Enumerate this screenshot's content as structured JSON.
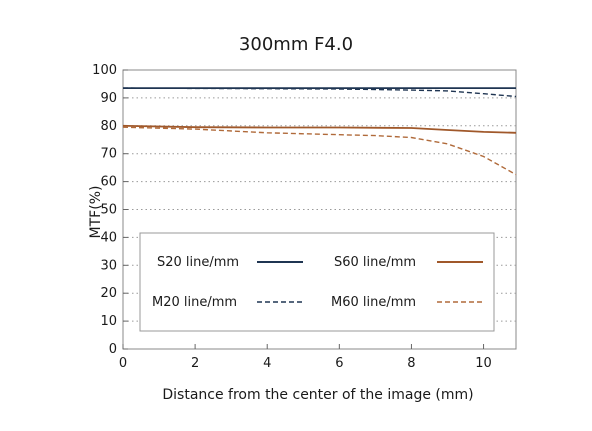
{
  "chart_data": {
    "type": "line",
    "title": "300mm F4.0",
    "xlabel": "Distance from the center of the image (mm)",
    "ylabel": "MTF(%)",
    "xlim": [
      0,
      10.9
    ],
    "ylim": [
      0,
      100
    ],
    "xticks": [
      0,
      2,
      4,
      6,
      8,
      10
    ],
    "yticks": [
      0,
      10,
      20,
      30,
      40,
      50,
      60,
      70,
      80,
      90,
      100
    ],
    "grid": "horizontal-dotted",
    "legend_position": "center-lower",
    "series": [
      {
        "name": "S20 line/mm",
        "color": "#1f3552",
        "dash": "solid",
        "x": [
          0,
          2,
          4,
          6,
          8,
          10,
          10.9
        ],
        "y": [
          93.5,
          93.5,
          93.5,
          93.5,
          93.5,
          93.5,
          93.5
        ]
      },
      {
        "name": "S60 line/mm",
        "color": "#a0582a",
        "dash": "solid",
        "x": [
          0,
          2,
          4,
          6,
          8,
          9,
          10,
          10.9
        ],
        "y": [
          80,
          79.5,
          79.4,
          79.4,
          79.2,
          78.5,
          77.8,
          77.5
        ]
      },
      {
        "name": "M20 line/mm",
        "color": "#1f3552",
        "dash": "dashed",
        "x": [
          0,
          2,
          4,
          6,
          8,
          9,
          10,
          10.9
        ],
        "y": [
          93.5,
          93.4,
          93.3,
          93.2,
          92.8,
          92.5,
          91.5,
          90.5
        ]
      },
      {
        "name": "M60 line/mm",
        "color": "#b06a3a",
        "dash": "dashed",
        "x": [
          0,
          2,
          4,
          6,
          7,
          8,
          9,
          10,
          10.9
        ],
        "y": [
          79.5,
          78.8,
          77.5,
          76.8,
          76.5,
          75.8,
          73.5,
          69,
          62.5
        ]
      }
    ]
  }
}
